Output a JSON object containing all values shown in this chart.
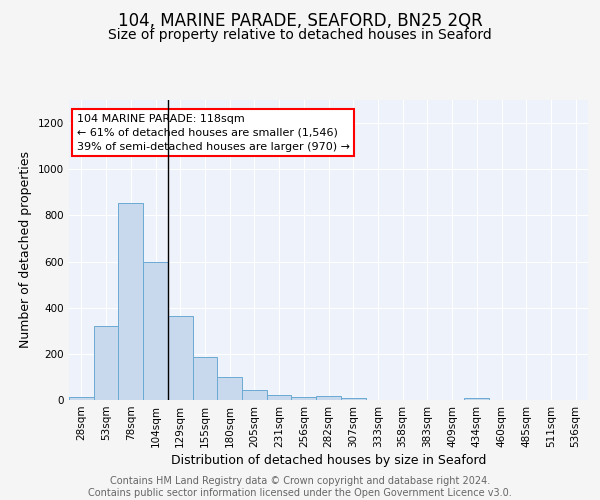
{
  "title1": "104, MARINE PARADE, SEAFORD, BN25 2QR",
  "title2": "Size of property relative to detached houses in Seaford",
  "xlabel": "Distribution of detached houses by size in Seaford",
  "ylabel": "Number of detached properties",
  "bar_color": "#c8d9ee",
  "bar_edge_color": "#6aaad4",
  "background_color": "#eef2fa",
  "grid_color": "#ffffff",
  "categories": [
    "28sqm",
    "53sqm",
    "78sqm",
    "104sqm",
    "129sqm",
    "155sqm",
    "180sqm",
    "205sqm",
    "231sqm",
    "256sqm",
    "282sqm",
    "307sqm",
    "333sqm",
    "358sqm",
    "383sqm",
    "409sqm",
    "434sqm",
    "460sqm",
    "485sqm",
    "511sqm",
    "536sqm"
  ],
  "values": [
    15,
    320,
    855,
    600,
    365,
    185,
    100,
    45,
    20,
    15,
    18,
    10,
    0,
    0,
    0,
    0,
    10,
    0,
    0,
    0,
    0
  ],
  "ylim": [
    0,
    1300
  ],
  "yticks": [
    0,
    200,
    400,
    600,
    800,
    1000,
    1200
  ],
  "vline_x": 3.5,
  "vline_color": "#000000",
  "annotation_line1": "104 MARINE PARADE: 118sqm",
  "annotation_line2": "← 61% of detached houses are smaller (1,546)",
  "annotation_line3": "39% of semi-detached houses are larger (970) →",
  "footer_text": "Contains HM Land Registry data © Crown copyright and database right 2024.\nContains public sector information licensed under the Open Government Licence v3.0.",
  "title1_fontsize": 12,
  "title2_fontsize": 10,
  "xlabel_fontsize": 9,
  "ylabel_fontsize": 9,
  "tick_fontsize": 7.5,
  "footer_fontsize": 7,
  "annot_fontsize": 8
}
